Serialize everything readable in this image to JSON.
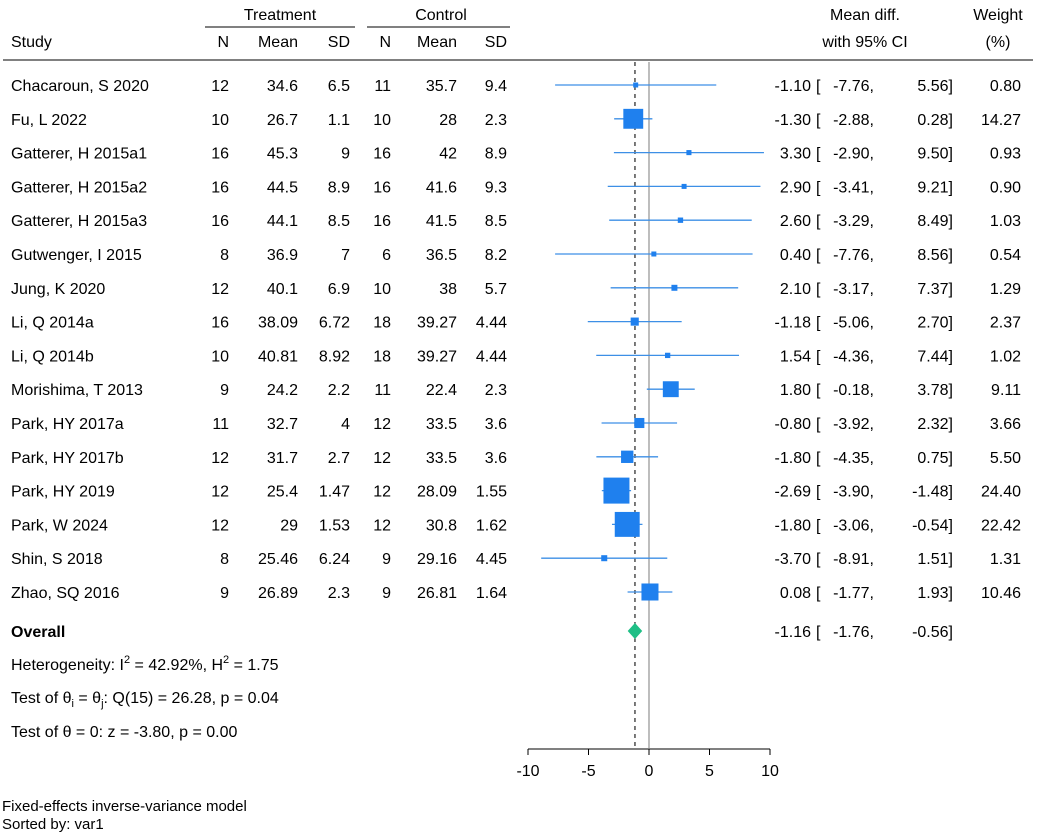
{
  "chart_data": {
    "type": "forest",
    "column_groups": [
      "Treatment",
      "Control"
    ],
    "headers": {
      "study": "Study",
      "t_n": "N",
      "t_mean": "Mean",
      "t_sd": "SD",
      "c_n": "N",
      "c_mean": "Mean",
      "c_sd": "SD",
      "effect_line1": "Mean diff.",
      "effect_line2": "with 95% CI",
      "weight_line1": "Weight",
      "weight_line2": "(%)"
    },
    "studies": [
      {
        "name": "Chacaroun, S 2020",
        "t_n": "12",
        "t_mean": "34.6",
        "t_sd": "6.5",
        "c_n": "11",
        "c_mean": "35.7",
        "c_sd": "9.4",
        "md": -1.1,
        "lo": -7.76,
        "hi": 5.56,
        "md_text": "-1.10",
        "lo_text": "-7.76,",
        "hi_text": "5.56]",
        "weight": 0.8,
        "weight_text": "0.80"
      },
      {
        "name": "Fu, L 2022",
        "t_n": "10",
        "t_mean": "26.7",
        "t_sd": "1.1",
        "c_n": "10",
        "c_mean": "28",
        "c_sd": "2.3",
        "md": -1.3,
        "lo": -2.88,
        "hi": 0.28,
        "md_text": "-1.30",
        "lo_text": "-2.88,",
        "hi_text": "0.28]",
        "weight": 14.27,
        "weight_text": "14.27"
      },
      {
        "name": "Gatterer, H 2015a1",
        "t_n": "16",
        "t_mean": "45.3",
        "t_sd": "9",
        "c_n": "16",
        "c_mean": "42",
        "c_sd": "8.9",
        "md": 3.3,
        "lo": -2.9,
        "hi": 9.5,
        "md_text": "3.30",
        "lo_text": "-2.90,",
        "hi_text": "9.50]",
        "weight": 0.93,
        "weight_text": "0.93"
      },
      {
        "name": "Gatterer, H 2015a2",
        "t_n": "16",
        "t_mean": "44.5",
        "t_sd": "8.9",
        "c_n": "16",
        "c_mean": "41.6",
        "c_sd": "9.3",
        "md": 2.9,
        "lo": -3.41,
        "hi": 9.21,
        "md_text": "2.90",
        "lo_text": "-3.41,",
        "hi_text": "9.21]",
        "weight": 0.9,
        "weight_text": "0.90"
      },
      {
        "name": "Gatterer, H 2015a3",
        "t_n": "16",
        "t_mean": "44.1",
        "t_sd": "8.5",
        "c_n": "16",
        "c_mean": "41.5",
        "c_sd": "8.5",
        "md": 2.6,
        "lo": -3.29,
        "hi": 8.49,
        "md_text": "2.60",
        "lo_text": "-3.29,",
        "hi_text": "8.49]",
        "weight": 1.03,
        "weight_text": "1.03"
      },
      {
        "name": "Gutwenger, I 2015",
        "t_n": "8",
        "t_mean": "36.9",
        "t_sd": "7",
        "c_n": "6",
        "c_mean": "36.5",
        "c_sd": "8.2",
        "md": 0.4,
        "lo": -7.76,
        "hi": 8.56,
        "md_text": "0.40",
        "lo_text": "-7.76,",
        "hi_text": "8.56]",
        "weight": 0.54,
        "weight_text": "0.54"
      },
      {
        "name": "Jung, K 2020",
        "t_n": "12",
        "t_mean": "40.1",
        "t_sd": "6.9",
        "c_n": "10",
        "c_mean": "38",
        "c_sd": "5.7",
        "md": 2.1,
        "lo": -3.17,
        "hi": 7.37,
        "md_text": "2.10",
        "lo_text": "-3.17,",
        "hi_text": "7.37]",
        "weight": 1.29,
        "weight_text": "1.29"
      },
      {
        "name": "Li, Q 2014a",
        "t_n": "16",
        "t_mean": "38.09",
        "t_sd": "6.72",
        "c_n": "18",
        "c_mean": "39.27",
        "c_sd": "4.44",
        "md": -1.18,
        "lo": -5.06,
        "hi": 2.7,
        "md_text": "-1.18",
        "lo_text": "-5.06,",
        "hi_text": "2.70]",
        "weight": 2.37,
        "weight_text": "2.37"
      },
      {
        "name": "Li, Q 2014b",
        "t_n": "10",
        "t_mean": "40.81",
        "t_sd": "8.92",
        "c_n": "18",
        "c_mean": "39.27",
        "c_sd": "4.44",
        "md": 1.54,
        "lo": -4.36,
        "hi": 7.44,
        "md_text": "1.54",
        "lo_text": "-4.36,",
        "hi_text": "7.44]",
        "weight": 1.02,
        "weight_text": "1.02"
      },
      {
        "name": "Morishima, T 2013",
        "t_n": "9",
        "t_mean": "24.2",
        "t_sd": "2.2",
        "c_n": "11",
        "c_mean": "22.4",
        "c_sd": "2.3",
        "md": 1.8,
        "lo": -0.18,
        "hi": 3.78,
        "md_text": "1.80",
        "lo_text": "-0.18,",
        "hi_text": "3.78]",
        "weight": 9.11,
        "weight_text": "9.11"
      },
      {
        "name": "Park, HY 2017a",
        "t_n": "11",
        "t_mean": "32.7",
        "t_sd": "4",
        "c_n": "12",
        "c_mean": "33.5",
        "c_sd": "3.6",
        "md": -0.8,
        "lo": -3.92,
        "hi": 2.32,
        "md_text": "-0.80",
        "lo_text": "-3.92,",
        "hi_text": "2.32]",
        "weight": 3.66,
        "weight_text": "3.66"
      },
      {
        "name": "Park, HY 2017b",
        "t_n": "12",
        "t_mean": "31.7",
        "t_sd": "2.7",
        "c_n": "12",
        "c_mean": "33.5",
        "c_sd": "3.6",
        "md": -1.8,
        "lo": -4.35,
        "hi": 0.75,
        "md_text": "-1.80",
        "lo_text": "-4.35,",
        "hi_text": "0.75]",
        "weight": 5.5,
        "weight_text": "5.50"
      },
      {
        "name": "Park, HY 2019",
        "t_n": "12",
        "t_mean": "25.4",
        "t_sd": "1.47",
        "c_n": "12",
        "c_mean": "28.09",
        "c_sd": "1.55",
        "md": -2.69,
        "lo": -3.9,
        "hi": -1.48,
        "md_text": "-2.69",
        "lo_text": "-3.90,",
        "hi_text": "-1.48]",
        "weight": 24.4,
        "weight_text": "24.40"
      },
      {
        "name": "Park, W 2024",
        "t_n": "12",
        "t_mean": "29",
        "t_sd": "1.53",
        "c_n": "12",
        "c_mean": "30.8",
        "c_sd": "1.62",
        "md": -1.8,
        "lo": -3.06,
        "hi": -0.54,
        "md_text": "-1.80",
        "lo_text": "-3.06,",
        "hi_text": "-0.54]",
        "weight": 22.42,
        "weight_text": "22.42"
      },
      {
        "name": "Shin, S 2018",
        "t_n": "8",
        "t_mean": "25.46",
        "t_sd": "6.24",
        "c_n": "9",
        "c_mean": "29.16",
        "c_sd": "4.45",
        "md": -3.7,
        "lo": -8.91,
        "hi": 1.51,
        "md_text": "-3.70",
        "lo_text": "-8.91,",
        "hi_text": "1.51]",
        "weight": 1.31,
        "weight_text": "1.31"
      },
      {
        "name": "Zhao, SQ 2016",
        "t_n": "9",
        "t_mean": "26.89",
        "t_sd": "2.3",
        "c_n": "9",
        "c_mean": "26.81",
        "c_sd": "1.64",
        "md": 0.08,
        "lo": -1.77,
        "hi": 1.93,
        "md_text": "0.08",
        "lo_text": "-1.77,",
        "hi_text": "1.93]",
        "weight": 10.46,
        "weight_text": "10.46"
      }
    ],
    "overall": {
      "label": "Overall",
      "md": -1.16,
      "lo": -1.76,
      "hi": -0.56,
      "md_text": "-1.16",
      "lo_text": "-1.76,",
      "hi_text": "-0.56]"
    },
    "stats": {
      "heterogeneity_prefix": "Heterogeneity: I",
      "heterogeneity_sup1": "2",
      "heterogeneity_mid": " = 42.92%, H",
      "heterogeneity_sup2": "2",
      "heterogeneity_end": " = 1.75",
      "test1_prefix": "Test of θ",
      "test1_sub1": "i",
      "test1_mid": " = θ",
      "test1_sub2": "j",
      "test1_end": ": Q(15) = 26.28, p = 0.04",
      "test2": "Test of θ = 0: z = -3.80, p = 0.00"
    },
    "x_axis": {
      "ticks": [
        -10,
        -5,
        0,
        5,
        10
      ],
      "tick_labels": [
        "-10",
        "-5",
        "0",
        "5",
        "10"
      ],
      "xlim": [
        -10,
        10
      ]
    },
    "colors": {
      "marker": "#1f80ee",
      "ci": "#3d8fe6",
      "diamond": "#1fbf86",
      "zero_line": "#9a9a9a"
    },
    "model_note": "Fixed-effects inverse-variance model",
    "sort_note": "Sorted by: var1"
  }
}
